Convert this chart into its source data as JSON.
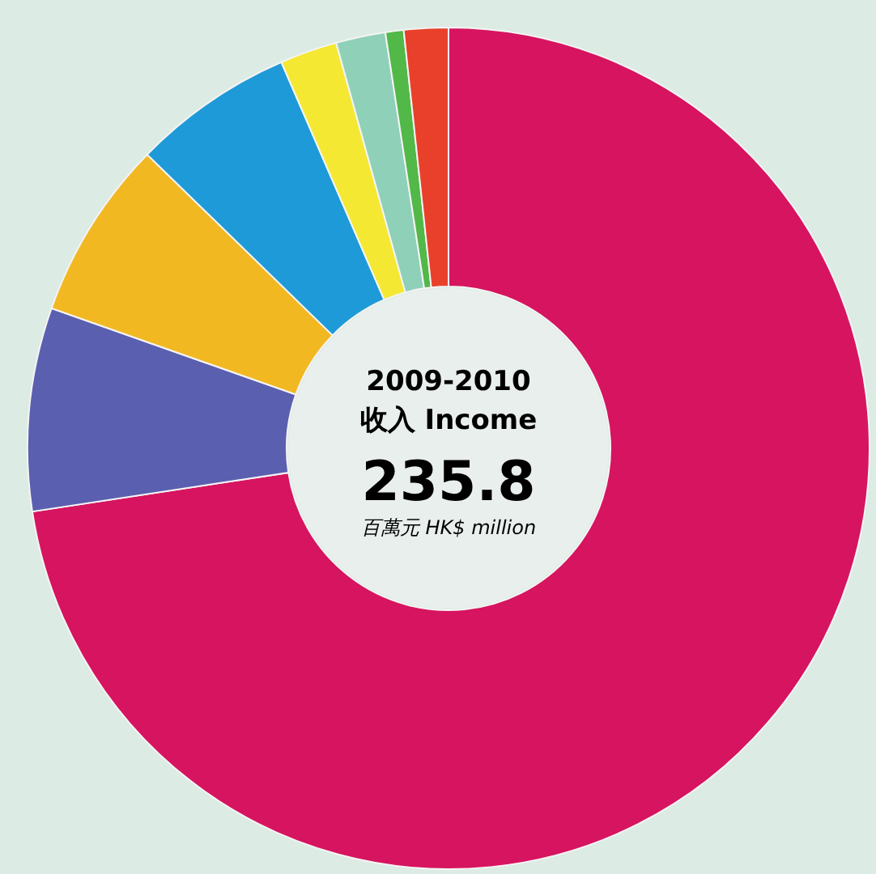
{
  "chart_data": {
    "type": "donut",
    "title": "2009-2010",
    "subtitle": "收入 Income",
    "annotations": [
      "235.8",
      "百萬元 HK$ million"
    ],
    "categories": [
      null,
      null,
      null,
      null,
      null,
      null,
      null,
      null
    ],
    "values": [
      72.6,
      7.8,
      6.9,
      6.2,
      2.2,
      1.9,
      0.7,
      1.7
    ],
    "colors": [
      "#d6145f",
      "#5b5fb0",
      "#f2b822",
      "#1e9ad8",
      "#f5e832",
      "#8fd0b8",
      "#52b848",
      "#e8402a"
    ]
  }
}
